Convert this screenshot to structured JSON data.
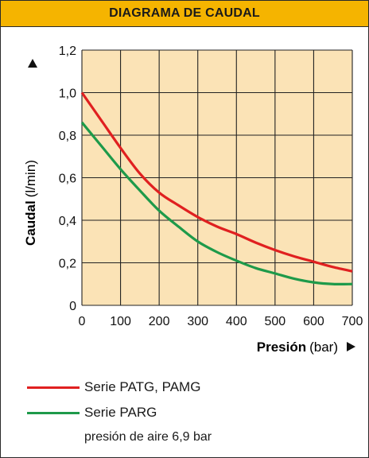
{
  "header": {
    "title": "DIAGRAMA DE CAUDAL"
  },
  "chart_data": {
    "type": "line",
    "title": "DIAGRAMA DE CAUDAL",
    "ylabel_bold": "Caudal",
    "ylabel_unit": "(l/min)",
    "xlabel_bold": "Presión",
    "xlabel_unit": "(bar)",
    "xlim": [
      0,
      700
    ],
    "ylim": [
      0,
      1.2
    ],
    "x_ticks": [
      0,
      100,
      200,
      300,
      400,
      500,
      600,
      700
    ],
    "x_tick_labels": [
      "0",
      "100",
      "200",
      "300",
      "400",
      "500",
      "600",
      "700"
    ],
    "y_ticks": [
      0,
      0.2,
      0.4,
      0.6,
      0.8,
      1.0,
      1.2
    ],
    "y_tick_labels": [
      "0",
      "0,2",
      "0,4",
      "0,6",
      "0,8",
      "1,0",
      "1,2"
    ],
    "grid": true,
    "plot_background": "#fbe3b6",
    "series": [
      {
        "name": "Serie PATG, PAMG",
        "color": "#e02020",
        "x": [
          0,
          50,
          100,
          150,
          200,
          250,
          300,
          350,
          400,
          450,
          500,
          550,
          600,
          650,
          700
        ],
        "y": [
          1.0,
          0.87,
          0.74,
          0.62,
          0.53,
          0.47,
          0.415,
          0.37,
          0.335,
          0.295,
          0.26,
          0.23,
          0.205,
          0.18,
          0.16
        ]
      },
      {
        "name": "Serie PARG",
        "color": "#1e9a4a",
        "x": [
          0,
          50,
          100,
          150,
          200,
          250,
          300,
          350,
          400,
          450,
          500,
          550,
          600,
          650,
          700
        ],
        "y": [
          0.86,
          0.75,
          0.64,
          0.54,
          0.445,
          0.37,
          0.3,
          0.25,
          0.21,
          0.175,
          0.15,
          0.125,
          0.108,
          0.1,
          0.1
        ]
      }
    ],
    "legend": [
      "Serie PATG, PAMG",
      "Serie PARG"
    ],
    "legend_placement": "bottom-left"
  },
  "legend": {
    "items": [
      {
        "label": "Serie PATG, PAMG",
        "color": "#e02020"
      },
      {
        "label": "Serie PARG",
        "color": "#1e9a4a"
      }
    ],
    "note": "presión de aire 6,9 bar"
  },
  "icons": {
    "y_arrow": "triangle-up-icon",
    "x_arrow": "triangle-right-icon"
  }
}
